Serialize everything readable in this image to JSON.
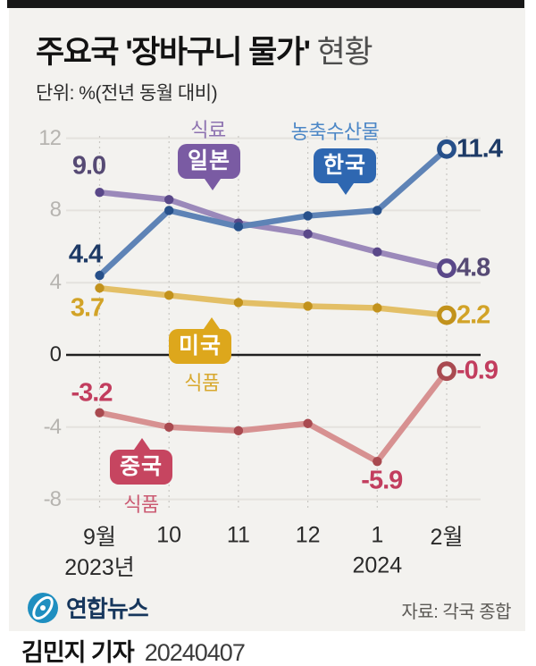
{
  "header": {
    "title_main": "주요국 '장바구니 물가'",
    "title_suffix": " 현황",
    "subtitle": "단위: %(전년 동월 대비)"
  },
  "chart_data": {
    "type": "line",
    "x": [
      "9월",
      "10",
      "11",
      "12",
      "1",
      "2월"
    ],
    "x_years": [
      {
        "index": 0,
        "label": "2023년"
      },
      {
        "index": 4,
        "label": "2024"
      }
    ],
    "yticks": [
      12,
      8,
      4,
      0,
      -4,
      -8
    ],
    "ylim": [
      -8,
      12
    ],
    "grid": true,
    "unit": "%",
    "legend_position": "inline-bubbles",
    "series": [
      {
        "name": "한국",
        "category": "농축수산물",
        "values": [
          4.4,
          8.0,
          7.1,
          7.7,
          8.0,
          11.4
        ],
        "labels": {
          "start": "4.4",
          "end": "11.4"
        },
        "colors": {
          "line": "#5e83b6",
          "dot": "#27508a",
          "bubble": "#2e67b1",
          "value": "#1d3a66",
          "category": "#4c87c6"
        }
      },
      {
        "name": "일본",
        "category": "식료",
        "values": [
          9.0,
          8.6,
          7.3,
          6.7,
          5.7,
          4.8
        ],
        "labels": {
          "start": "9.0",
          "end": "4.8"
        },
        "colors": {
          "line": "#9b89ba",
          "dot": "#5a4889",
          "bubble": "#7a5ba3",
          "value": "#564a74",
          "category": "#8d72b0"
        }
      },
      {
        "name": "미국",
        "category": "식품",
        "values": [
          3.7,
          3.3,
          2.9,
          2.7,
          2.6,
          2.2
        ],
        "labels": {
          "start": "3.7",
          "end": "2.2"
        },
        "colors": {
          "line": "#e3bf66",
          "dot": "#c2921c",
          "bubble": "#dda71c",
          "value": "#d2a327",
          "category": "#d8a82e"
        }
      },
      {
        "name": "중국",
        "category": "식품",
        "values": [
          -3.2,
          -4.0,
          -4.2,
          -3.8,
          -5.9,
          -0.9
        ],
        "labels": {
          "start": "-3.2",
          "end": "-0.9",
          "extra": {
            "index": 4,
            "text": "-5.9"
          }
        },
        "colors": {
          "line": "#d79191",
          "dot": "#a94a50",
          "bubble": "#c64560",
          "value": "#c23d5e",
          "category": "#cb5a72"
        }
      }
    ]
  },
  "footer": {
    "brand": "연합뉴스",
    "source": "자료: 각국 종합"
  },
  "caption": {
    "reporter": "김민지 기자",
    "date": "20240407"
  }
}
